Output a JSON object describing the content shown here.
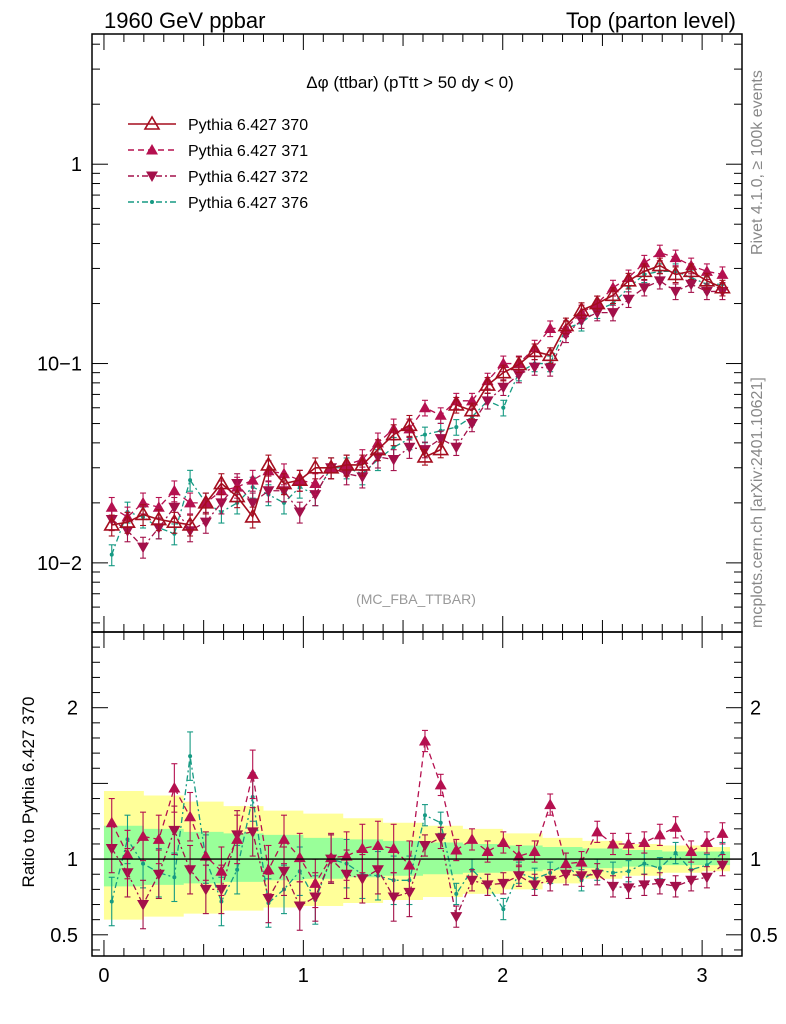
{
  "header": {
    "left": "1960 GeV ppbar",
    "right": "Top (parton level)"
  },
  "side_labels": {
    "rivet": "Rivet 4.1.0, ≥ 100k events",
    "mcplots": "mcplots.cern.ch [arXiv:2401.10621]"
  },
  "colors": {
    "s370": "#a50d1f",
    "s371": "#b5104f",
    "s372": "#a3104a",
    "s376": "#169a83",
    "band_outer": "#ffff99",
    "band_inner": "#99ff99"
  },
  "chart_data": [
    {
      "type": "line",
      "panel": "main",
      "title": "Δφ (ttbar) (pTtt > 50 dy < 0)",
      "watermark": "(MC_FBA_TTBAR)",
      "xlabel": "",
      "ylabel": "",
      "yscale": "log",
      "xlim": [
        -0.06,
        3.2
      ],
      "ylim": [
        0.0045,
        4.5
      ],
      "ytick_labels": [
        "10−2",
        "10−1",
        "1"
      ],
      "x": [
        0.039,
        0.118,
        0.196,
        0.275,
        0.353,
        0.432,
        0.511,
        0.589,
        0.668,
        0.746,
        0.825,
        0.903,
        0.982,
        1.06,
        1.139,
        1.217,
        1.296,
        1.374,
        1.453,
        1.532,
        1.61,
        1.689,
        1.767,
        1.846,
        1.924,
        2.003,
        2.081,
        2.16,
        2.238,
        2.317,
        2.395,
        2.474,
        2.553,
        2.631,
        2.71,
        2.788,
        2.867,
        2.945,
        3.024,
        3.102
      ],
      "series": [
        {
          "name": "Pythia 6.427 370",
          "marker": "open-triangle-up",
          "linestyle": "solid",
          "values": [
            0.0155,
            0.016,
            0.0175,
            0.0165,
            0.016,
            0.0155,
            0.02,
            0.025,
            0.0215,
            0.017,
            0.031,
            0.025,
            0.026,
            0.03,
            0.03,
            0.031,
            0.031,
            0.037,
            0.044,
            0.049,
            0.034,
            0.037,
            0.062,
            0.058,
            0.078,
            0.09,
            0.099,
            0.115,
            0.11,
            0.155,
            0.185,
            0.2,
            0.22,
            0.26,
            0.29,
            0.31,
            0.28,
            0.29,
            0.26,
            0.24
          ]
        },
        {
          "name": "Pythia 6.427 371",
          "marker": "filled-triangle-up",
          "linestyle": "dashed",
          "values": [
            0.019,
            0.017,
            0.02,
            0.019,
            0.023,
            0.02,
            0.02,
            0.023,
            0.024,
            0.026,
            0.029,
            0.028,
            0.026,
            0.025,
            0.03,
            0.031,
            0.033,
            0.04,
            0.047,
            0.047,
            0.06,
            0.055,
            0.065,
            0.065,
            0.082,
            0.1,
            0.1,
            0.12,
            0.15,
            0.15,
            0.18,
            0.2,
            0.24,
            0.27,
            0.32,
            0.36,
            0.34,
            0.31,
            0.29,
            0.28
          ]
        },
        {
          "name": "Pythia 6.427 372",
          "marker": "filled-triangle-down",
          "linestyle": "dashdot",
          "values": [
            0.0165,
            0.0145,
            0.012,
            0.015,
            0.019,
            0.0145,
            0.016,
            0.02,
            0.025,
            0.02,
            0.023,
            0.023,
            0.018,
            0.022,
            0.03,
            0.028,
            0.027,
            0.034,
            0.033,
            0.038,
            0.037,
            0.042,
            0.038,
            0.05,
            0.065,
            0.076,
            0.088,
            0.096,
            0.095,
            0.14,
            0.165,
            0.18,
            0.18,
            0.21,
            0.24,
            0.26,
            0.23,
            0.25,
            0.23,
            0.23
          ]
        },
        {
          "name": "Pythia 6.427 376",
          "marker": "small-dot",
          "linestyle": "dashdot",
          "values": [
            0.011,
            0.018,
            0.017,
            0.015,
            0.014,
            0.026,
            0.02,
            0.018,
            0.02,
            0.024,
            0.022,
            0.02,
            0.024,
            0.022,
            0.03,
            0.03,
            0.028,
            0.033,
            0.038,
            0.042,
            0.044,
            0.046,
            0.048,
            0.054,
            0.065,
            0.06,
            0.09,
            0.1,
            0.1,
            0.15,
            0.16,
            0.185,
            0.2,
            0.24,
            0.28,
            0.29,
            0.29,
            0.27,
            0.25,
            0.25
          ]
        }
      ]
    },
    {
      "type": "line",
      "panel": "ratio",
      "xlabel": "",
      "ylabel": "Ratio to Pythia 6.427 370",
      "xlim": [
        -0.06,
        3.2
      ],
      "ylim": [
        0.36,
        2.5
      ],
      "xtick_labels": [
        "0",
        "1",
        "2",
        "3"
      ],
      "ytick_labels": [
        "0.5",
        "1",
        "2"
      ],
      "reference_line": 1,
      "band_outer_edges_x": [
        0.0,
        0.2,
        0.4,
        0.6,
        0.8,
        1.0,
        1.2,
        1.4,
        1.6,
        1.8,
        2.0,
        2.2,
        2.4,
        2.6,
        2.8,
        3.0,
        3.14
      ],
      "band_outer_low": [
        0.6,
        0.62,
        0.64,
        0.66,
        0.68,
        0.69,
        0.71,
        0.73,
        0.75,
        0.77,
        0.8,
        0.84,
        0.87,
        0.89,
        0.91,
        0.92,
        0.92
      ],
      "band_outer_high": [
        1.45,
        1.42,
        1.38,
        1.35,
        1.32,
        1.3,
        1.27,
        1.24,
        1.22,
        1.2,
        1.17,
        1.14,
        1.12,
        1.1,
        1.09,
        1.08,
        1.08
      ],
      "band_inner_low": [
        0.82,
        0.83,
        0.84,
        0.85,
        0.86,
        0.87,
        0.88,
        0.89,
        0.9,
        0.91,
        0.92,
        0.93,
        0.94,
        0.95,
        0.96,
        0.96,
        0.96
      ],
      "band_inner_high": [
        1.22,
        1.2,
        1.18,
        1.17,
        1.16,
        1.14,
        1.13,
        1.12,
        1.11,
        1.1,
        1.09,
        1.08,
        1.07,
        1.06,
        1.05,
        1.05,
        1.05
      ],
      "series": [
        {
          "name": "Pythia 6.427 371 / 370",
          "values": [
            1.24,
            1.03,
            1.15,
            1.13,
            1.47,
            1.28,
            1.02,
            0.92,
            1.13,
            1.56,
            0.93,
            1.13,
            1.01,
            0.84,
            1.01,
            1.02,
            1.07,
            1.09,
            1.07,
            0.96,
            1.78,
            1.49,
            1.06,
            1.13,
            1.05,
            1.11,
            1.02,
            1.05,
            1.36,
            0.97,
            0.98,
            1.18,
            1.1,
            1.1,
            1.11,
            1.16,
            1.21,
            1.05,
            1.11,
            1.17
          ]
        },
        {
          "name": "Pythia 6.427 372 / 370",
          "values": [
            1.07,
            0.91,
            0.7,
            0.9,
            1.19,
            0.93,
            0.8,
            0.8,
            1.16,
            1.18,
            0.74,
            0.92,
            0.69,
            0.75,
            1.0,
            0.9,
            0.87,
            0.93,
            0.75,
            0.78,
            1.09,
            1.14,
            0.62,
            0.86,
            0.83,
            0.84,
            0.89,
            0.83,
            0.86,
            0.9,
            0.89,
            0.9,
            0.82,
            0.81,
            0.83,
            0.84,
            0.82,
            0.86,
            0.88,
            0.96
          ]
        },
        {
          "name": "Pythia 6.427 376 / 370",
          "values": [
            0.72,
            1.13,
            0.97,
            0.91,
            0.88,
            1.68,
            1.0,
            0.72,
            0.93,
            1.41,
            0.71,
            0.8,
            0.92,
            0.73,
            1.0,
            0.97,
            0.9,
            0.89,
            0.86,
            0.86,
            1.29,
            1.24,
            0.77,
            0.93,
            0.83,
            0.67,
            0.91,
            0.87,
            0.91,
            0.97,
            0.86,
            0.93,
            0.91,
            0.92,
            0.97,
            0.94,
            1.04,
            0.93,
            0.96,
            1.04
          ]
        }
      ]
    }
  ]
}
